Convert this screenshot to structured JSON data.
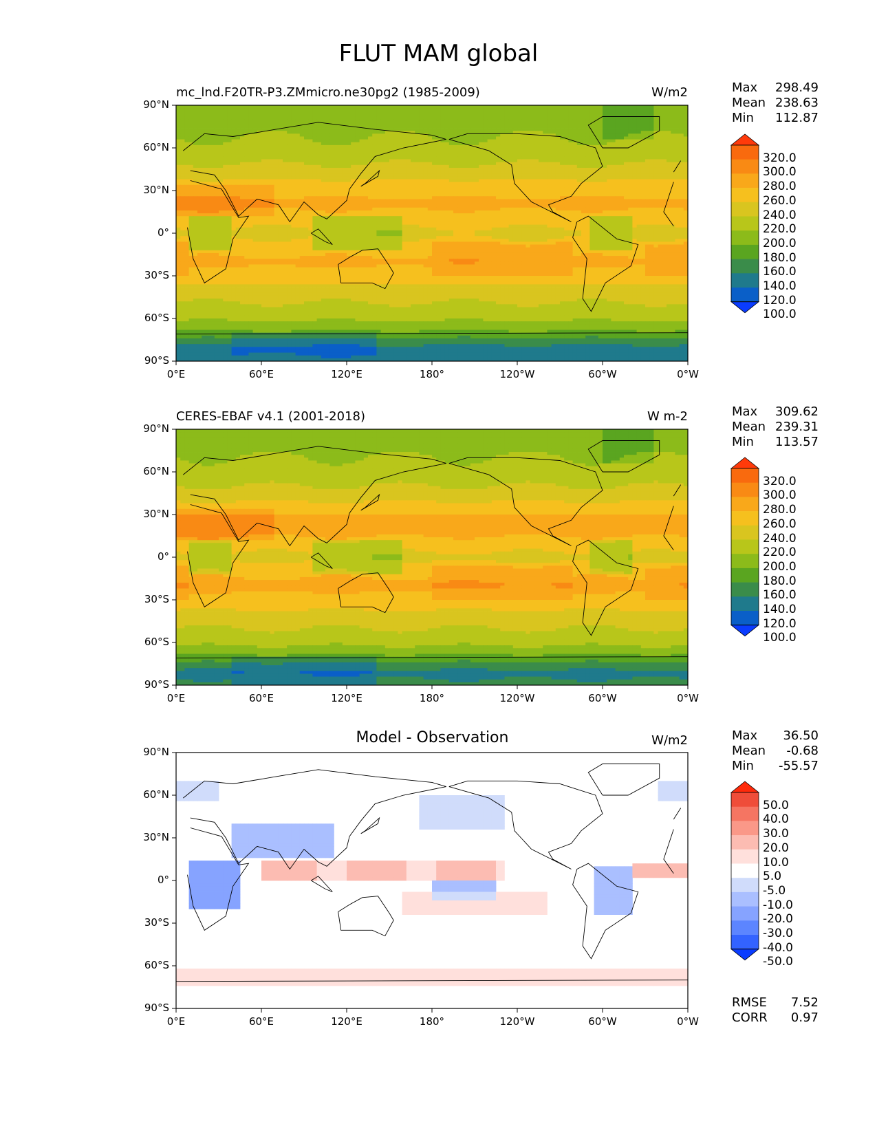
{
  "title": "FLUT MAM global",
  "colors": {
    "model_levels": [
      "#0a3cff",
      "#0a5fc8",
      "#1f7a8c",
      "#3a8c4a",
      "#5aa520",
      "#8cbb1a",
      "#b8c61a",
      "#d9c51f",
      "#f6c01e",
      "#f9a81a",
      "#f98a14",
      "#f96a0e",
      "#ff3a0a"
    ],
    "diff_levels": [
      "#0a3cff",
      "#3363ff",
      "#5c85ff",
      "#86a3ff",
      "#aabfff",
      "#d0dcfb",
      "#ffffff",
      "#ffe0dc",
      "#fcbcb2",
      "#fa9888",
      "#f57562",
      "#ef4d39",
      "#ff2a0a"
    ]
  },
  "axes": {
    "lat_ticks": [
      "90°N",
      "60°N",
      "30°N",
      "0°",
      "30°S",
      "60°S",
      "90°S"
    ],
    "lon_ticks": [
      "0°E",
      "60°E",
      "120°E",
      "180°",
      "120°W",
      "60°W",
      "0°W"
    ]
  },
  "panels": [
    {
      "title": "mc_lnd.F20TR-P3.ZMmicro.ne30pg2 (1985-2009)",
      "units": "W/m2",
      "stats": {
        "max_label": "Max",
        "max": "298.49",
        "mean_label": "Mean",
        "mean": "238.63",
        "min_label": "Min",
        "min": "112.87"
      },
      "colorbar": [
        "320.0",
        "300.0",
        "280.0",
        "260.0",
        "240.0",
        "220.0",
        "200.0",
        "180.0",
        "160.0",
        "140.0",
        "120.0",
        "100.0"
      ]
    },
    {
      "title": "CERES-EBAF v4.1 (2001-2018)",
      "units": "W m-2",
      "stats": {
        "max_label": "Max",
        "max": "309.62",
        "mean_label": "Mean",
        "mean": "239.31",
        "min_label": "Min",
        "min": "113.57"
      },
      "colorbar": [
        "320.0",
        "300.0",
        "280.0",
        "260.0",
        "240.0",
        "220.0",
        "200.0",
        "180.0",
        "160.0",
        "140.0",
        "120.0",
        "100.0"
      ]
    },
    {
      "title": "Model - Observation",
      "units": "W/m2",
      "stats": {
        "max_label": "Max",
        "max": "36.50",
        "mean_label": "Mean",
        "mean": "-0.68",
        "min_label": "Min",
        "min": "-55.57"
      },
      "colorbar": [
        "50.0",
        "40.0",
        "30.0",
        "20.0",
        "10.0",
        "5.0",
        "-5.0",
        "-10.0",
        "-20.0",
        "-30.0",
        "-40.0",
        "-50.0"
      ],
      "metrics": {
        "rmse_label": "RMSE",
        "rmse": "7.52",
        "corr_label": "CORR",
        "corr": "0.97"
      }
    }
  ],
  "chart_data": [
    {
      "type": "heatmap",
      "title": "mc_lnd.F20TR-P3.ZMmicro.ne30pg2 (1985-2009)",
      "units": "W/m2",
      "x_range": [
        0,
        360
      ],
      "y_range": [
        -90,
        90
      ],
      "levels": [
        100,
        120,
        140,
        160,
        180,
        200,
        220,
        240,
        260,
        280,
        300,
        320
      ],
      "zonal_mean_approx": {
        "lat": [
          90,
          75,
          60,
          45,
          30,
          20,
          10,
          0,
          -10,
          -20,
          -30,
          -45,
          -60,
          -70,
          -80,
          -90
        ],
        "value": [
          185,
          195,
          205,
          225,
          255,
          265,
          250,
          235,
          250,
          265,
          250,
          225,
          205,
          175,
          135,
          140
        ]
      },
      "max": 298.49,
      "mean": 238.63,
      "min": 112.87
    },
    {
      "type": "heatmap",
      "title": "CERES-EBAF v4.1 (2001-2018)",
      "units": "W m-2",
      "x_range": [
        0,
        360
      ],
      "y_range": [
        -90,
        90
      ],
      "levels": [
        100,
        120,
        140,
        160,
        180,
        200,
        220,
        240,
        260,
        280,
        300,
        320
      ],
      "zonal_mean_approx": {
        "lat": [
          90,
          75,
          60,
          45,
          30,
          20,
          10,
          0,
          -10,
          -20,
          -30,
          -45,
          -60,
          -70,
          -80,
          -90
        ],
        "value": [
          185,
          195,
          205,
          225,
          258,
          268,
          250,
          232,
          252,
          265,
          250,
          225,
          205,
          172,
          135,
          140
        ]
      },
      "max": 309.62,
      "mean": 239.31,
      "min": 113.57
    },
    {
      "type": "heatmap",
      "title": "Model - Observation",
      "units": "W/m2",
      "x_range": [
        0,
        360
      ],
      "y_range": [
        -90,
        90
      ],
      "levels": [
        -50,
        -40,
        -30,
        -20,
        -10,
        -5,
        5,
        10,
        20,
        30,
        40,
        50
      ],
      "max": 36.5,
      "mean": -0.68,
      "min": -55.57,
      "rmse": 7.52,
      "corr": 0.97
    }
  ]
}
